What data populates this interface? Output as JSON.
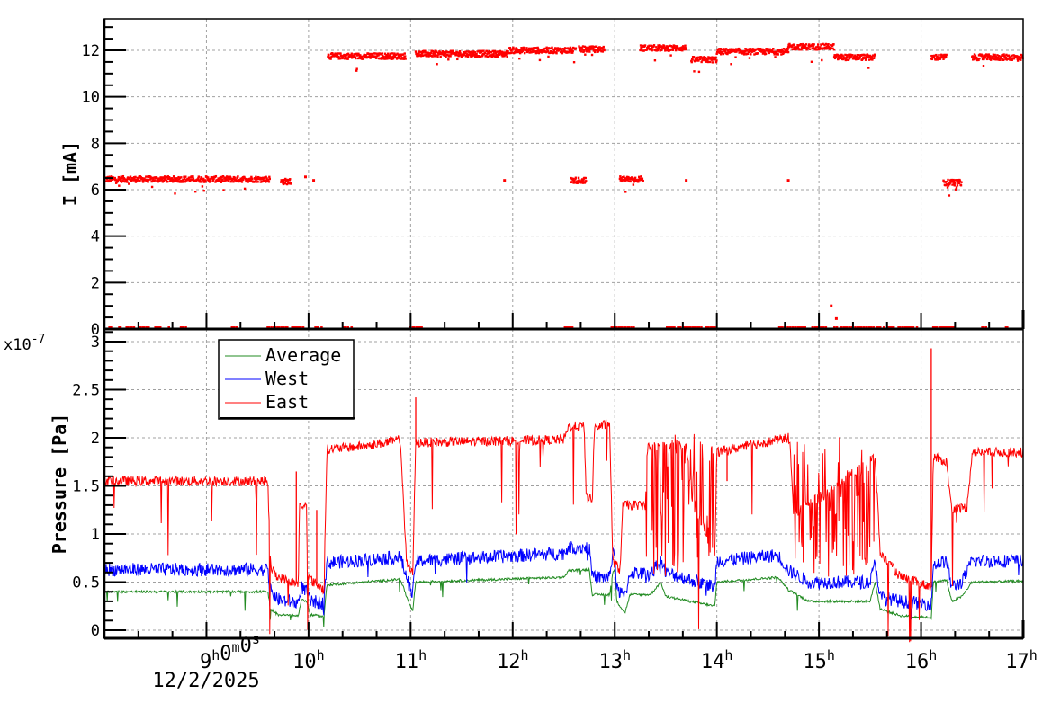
{
  "chart_data": [
    {
      "id": "current",
      "type": "scatter",
      "title": "",
      "xlabel": "",
      "ylabel": "I [mA]",
      "x_unit": "hour of day",
      "xlim": [
        8.0,
        17.0
      ],
      "ylim": [
        0,
        13.35
      ],
      "yticks": [
        0,
        2,
        4,
        6,
        8,
        10,
        12
      ],
      "ytick_labels": [
        "0",
        "2",
        "4",
        "6",
        "8",
        "10",
        "12"
      ],
      "grid": true,
      "color": "#ff0000",
      "segments": [
        {
          "x_start": 8.0,
          "x_end": 9.62,
          "y": 6.45,
          "note": "steady ~6.4 mA"
        },
        {
          "x_start": 9.73,
          "x_end": 9.83,
          "y": 6.35
        },
        {
          "x_start": 10.19,
          "x_end": 10.95,
          "y": 11.75,
          "note": "dips to ~11.0 near 10.5h"
        },
        {
          "x_start": 11.05,
          "x_end": 11.95,
          "y": 11.85
        },
        {
          "x_start": 11.95,
          "x_end": 12.62,
          "y": 12.0
        },
        {
          "x_start": 12.65,
          "x_end": 12.9,
          "y": 12.05
        },
        {
          "x_start": 13.25,
          "x_end": 13.7,
          "y": 12.1
        },
        {
          "x_start": 13.75,
          "x_end": 14.0,
          "y": 11.6
        },
        {
          "x_start": 14.0,
          "x_end": 14.7,
          "y": 11.95
        },
        {
          "x_start": 14.7,
          "x_end": 15.15,
          "y": 12.15
        },
        {
          "x_start": 15.15,
          "x_end": 15.55,
          "y": 11.7
        },
        {
          "x_start": 16.1,
          "x_end": 16.25,
          "y": 11.7
        },
        {
          "x_start": 16.5,
          "x_end": 17.0,
          "y": 11.7
        },
        {
          "x_start": 12.57,
          "x_end": 12.72,
          "y": 6.4
        },
        {
          "x_start": 13.05,
          "x_end": 13.28,
          "y": 6.45
        },
        {
          "x_start": 16.22,
          "x_end": 16.4,
          "y": 6.3
        }
      ],
      "isolated_points": [
        {
          "x": 9.75,
          "y": 6.4
        },
        {
          "x": 9.97,
          "y": 6.55
        },
        {
          "x": 10.05,
          "y": 6.4
        },
        {
          "x": 11.92,
          "y": 6.4
        },
        {
          "x": 13.7,
          "y": 6.4
        },
        {
          "x": 14.7,
          "y": 6.4
        },
        {
          "x": 15.12,
          "y": 1.0
        },
        {
          "x": 15.17,
          "y": 0.45
        }
      ],
      "zero_points": [
        [
          8.05,
          8.55
        ],
        [
          8.5,
          8.65
        ],
        [
          8.75,
          8.8
        ],
        [
          9.25,
          9.3
        ],
        [
          9.6,
          10.15
        ],
        [
          10.35,
          10.45
        ],
        [
          11.0,
          11.12
        ],
        [
          12.5,
          12.6
        ],
        [
          12.97,
          13.2
        ],
        [
          13.5,
          14.0
        ],
        [
          14.6,
          15.6
        ],
        [
          15.6,
          16.0
        ],
        [
          16.12,
          16.35
        ],
        [
          16.6,
          16.65
        ],
        [
          16.82,
          16.85
        ]
      ]
    },
    {
      "id": "pressure",
      "type": "line",
      "title": "",
      "xlabel": "",
      "ylabel": "Pressure [Pa]",
      "y_multiplier": "x10-7",
      "xlim": [
        8.0,
        17.0
      ],
      "ylim": [
        -0.085,
        3.13
      ],
      "yticks": [
        0,
        0.5,
        1,
        1.5,
        2,
        2.5,
        3
      ],
      "ytick_labels": [
        "0",
        "0.5",
        "1",
        "1.5",
        "2",
        "2.5",
        "3"
      ],
      "grid": true,
      "legend": {
        "position": "upper-left",
        "entries": [
          "Average",
          "West",
          "East"
        ]
      },
      "series": [
        {
          "name": "Average",
          "color": "#228b22",
          "noise": 0.012,
          "levels": [
            [
              8.0,
              0.4
            ],
            [
              9.6,
              0.4
            ],
            [
              9.63,
              0.22
            ],
            [
              9.7,
              0.16
            ],
            [
              9.9,
              0.15
            ],
            [
              9.93,
              0.32
            ],
            [
              9.98,
              0.3
            ],
            [
              10.02,
              0.16
            ],
            [
              10.15,
              0.14
            ],
            [
              10.18,
              0.47
            ],
            [
              10.9,
              0.53
            ],
            [
              10.96,
              0.35
            ],
            [
              11.02,
              0.2
            ],
            [
              11.05,
              0.5
            ],
            [
              12.5,
              0.55
            ],
            [
              12.55,
              0.62
            ],
            [
              12.75,
              0.63
            ],
            [
              12.78,
              0.37
            ],
            [
              12.95,
              0.37
            ],
            [
              12.98,
              0.6
            ],
            [
              13.0,
              0.62
            ],
            [
              13.02,
              0.3
            ],
            [
              13.1,
              0.18
            ],
            [
              13.15,
              0.37
            ],
            [
              13.35,
              0.37
            ],
            [
              13.45,
              0.5
            ],
            [
              13.5,
              0.35
            ],
            [
              13.98,
              0.25
            ],
            [
              14.0,
              0.5
            ],
            [
              14.6,
              0.55
            ],
            [
              14.7,
              0.42
            ],
            [
              14.9,
              0.3
            ],
            [
              15.5,
              0.3
            ],
            [
              15.55,
              0.5
            ],
            [
              15.6,
              0.22
            ],
            [
              15.8,
              0.15
            ],
            [
              16.1,
              0.13
            ],
            [
              16.12,
              0.5
            ],
            [
              16.25,
              0.52
            ],
            [
              16.3,
              0.3
            ],
            [
              16.4,
              0.35
            ],
            [
              16.5,
              0.5
            ],
            [
              17.0,
              0.51
            ]
          ]
        },
        {
          "name": "West",
          "color": "#0000ff",
          "noise": 0.07,
          "levels": [
            [
              8.0,
              0.63
            ],
            [
              9.6,
              0.63
            ],
            [
              9.63,
              0.4
            ],
            [
              9.7,
              0.32
            ],
            [
              9.9,
              0.28
            ],
            [
              9.93,
              0.45
            ],
            [
              9.98,
              0.4
            ],
            [
              10.02,
              0.3
            ],
            [
              10.15,
              0.28
            ],
            [
              10.18,
              0.7
            ],
            [
              10.9,
              0.76
            ],
            [
              10.96,
              0.55
            ],
            [
              11.02,
              0.36
            ],
            [
              11.05,
              0.72
            ],
            [
              12.5,
              0.8
            ],
            [
              12.55,
              0.86
            ],
            [
              12.75,
              0.86
            ],
            [
              12.78,
              0.55
            ],
            [
              12.95,
              0.55
            ],
            [
              12.98,
              0.82
            ],
            [
              13.0,
              0.8
            ],
            [
              13.02,
              0.42
            ],
            [
              13.1,
              0.35
            ],
            [
              13.15,
              0.6
            ],
            [
              13.35,
              0.58
            ],
            [
              13.45,
              0.72
            ],
            [
              13.5,
              0.6
            ],
            [
              13.98,
              0.45
            ],
            [
              14.0,
              0.72
            ],
            [
              14.6,
              0.78
            ],
            [
              14.7,
              0.62
            ],
            [
              14.9,
              0.5
            ],
            [
              15.5,
              0.5
            ],
            [
              15.55,
              0.7
            ],
            [
              15.6,
              0.35
            ],
            [
              15.8,
              0.3
            ],
            [
              16.1,
              0.27
            ],
            [
              16.12,
              0.68
            ],
            [
              16.25,
              0.72
            ],
            [
              16.3,
              0.45
            ],
            [
              16.4,
              0.5
            ],
            [
              16.5,
              0.72
            ],
            [
              17.0,
              0.72
            ]
          ]
        },
        {
          "name": "East",
          "color": "#ff0000",
          "noise": 0.05,
          "levels": [
            [
              8.0,
              1.55
            ],
            [
              9.6,
              1.55
            ],
            [
              9.63,
              0.65
            ],
            [
              9.7,
              0.55
            ],
            [
              9.9,
              0.48
            ],
            [
              9.91,
              1.28
            ],
            [
              9.98,
              1.3
            ],
            [
              9.99,
              0.55
            ],
            [
              10.15,
              0.42
            ],
            [
              10.18,
              1.88
            ],
            [
              10.6,
              1.92
            ],
            [
              10.9,
              1.98
            ],
            [
              10.96,
              0.7
            ],
            [
              11.02,
              0.58
            ],
            [
              11.05,
              1.95
            ],
            [
              12.5,
              1.98
            ],
            [
              12.55,
              2.12
            ],
            [
              12.7,
              2.12
            ],
            [
              12.72,
              1.4
            ],
            [
              12.78,
              1.35
            ],
            [
              12.8,
              2.1
            ],
            [
              12.95,
              2.15
            ],
            [
              12.98,
              0.72
            ],
            [
              13.05,
              0.62
            ],
            [
              13.08,
              1.3
            ],
            [
              13.3,
              1.3
            ],
            [
              13.32,
              1.9
            ],
            [
              13.7,
              1.95
            ],
            [
              13.75,
              1.4
            ],
            [
              13.98,
              0.75
            ],
            [
              14.0,
              1.85
            ],
            [
              14.7,
              2.0
            ],
            [
              14.72,
              1.9
            ],
            [
              14.75,
              1.2
            ],
            [
              15.55,
              1.8
            ],
            [
              15.6,
              0.8
            ],
            [
              15.8,
              0.55
            ],
            [
              16.1,
              0.45
            ],
            [
              16.12,
              1.8
            ],
            [
              16.25,
              1.75
            ],
            [
              16.3,
              1.25
            ],
            [
              16.45,
              1.28
            ],
            [
              16.5,
              1.85
            ],
            [
              17.0,
              1.85
            ]
          ],
          "spikes": [
            {
              "x": 9.88,
              "y": 1.65
            },
            {
              "x": 10.08,
              "y": 1.25
            },
            {
              "x": 11.05,
              "y": 2.42
            },
            {
              "x": 14.1,
              "y": 1.55
            },
            {
              "x": 16.1,
              "y": 2.93
            }
          ],
          "burst_regions": [
            [
              13.35,
              13.98
            ],
            [
              14.75,
              15.55
            ]
          ]
        }
      ]
    }
  ],
  "x_axis": {
    "tick_labels": [
      {
        "hour": 9,
        "label": "9",
        "sup": "h",
        "extra": "0",
        "extra_sup": "m",
        "extra2": "0",
        "extra2_sup": "s"
      },
      {
        "hour": 10,
        "label": "10",
        "sup": "h"
      },
      {
        "hour": 11,
        "label": "11",
        "sup": "h"
      },
      {
        "hour": 12,
        "label": "12",
        "sup": "h"
      },
      {
        "hour": 13,
        "label": "13",
        "sup": "h"
      },
      {
        "hour": 14,
        "label": "14",
        "sup": "h"
      },
      {
        "hour": 15,
        "label": "15",
        "sup": "h"
      },
      {
        "hour": 16,
        "label": "16",
        "sup": "h"
      },
      {
        "hour": 17,
        "label": "17",
        "sup": "h"
      }
    ],
    "date_label": "12/2/2025",
    "first_label_text": "9h0m0s"
  },
  "labels": {
    "current_ylabel": "I [mA]",
    "pressure_ylabel": "Pressure [Pa]",
    "multiplier_base": "x10",
    "multiplier_exp": "-7",
    "legend_average": "Average",
    "legend_west": "West",
    "legend_east": "East"
  }
}
